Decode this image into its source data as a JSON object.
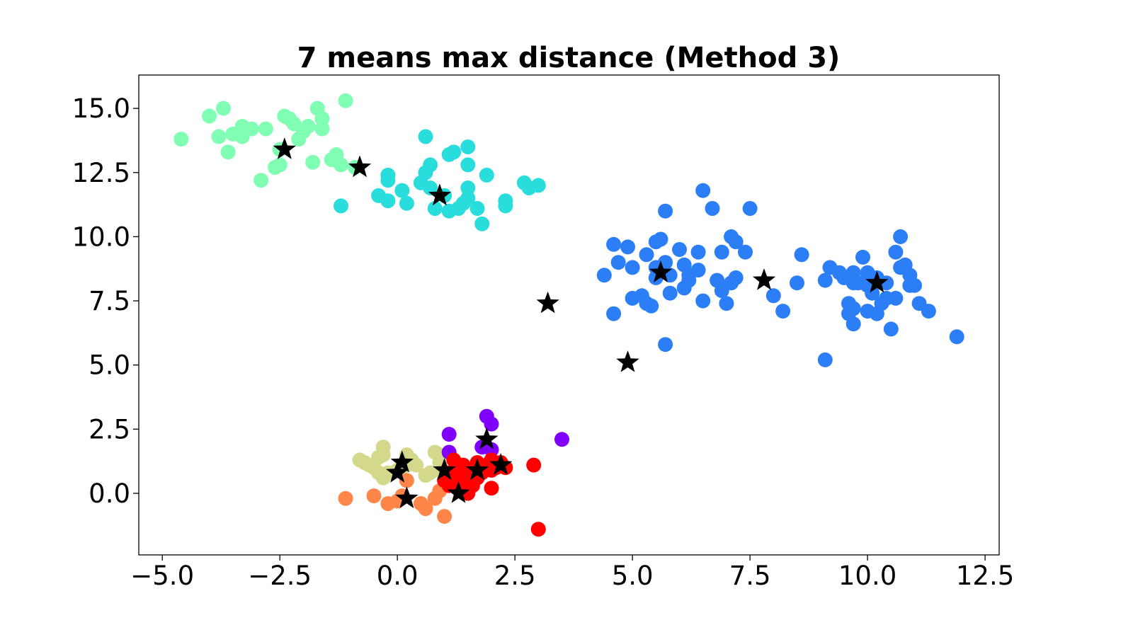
{
  "chart_data": {
    "type": "scatter",
    "title": "7 means max distance (Method 3)",
    "xlabel": "",
    "ylabel": "",
    "xlim": [
      -5.5,
      12.8
    ],
    "ylim": [
      -2.4,
      16.3
    ],
    "grid": false,
    "legend": "none",
    "xticks": [
      -5.0,
      -2.5,
      0.0,
      2.5,
      5.0,
      7.5,
      10.0,
      12.5
    ],
    "xtick_labels": [
      "−5.0",
      "−2.5",
      "0.0",
      "2.5",
      "5.0",
      "7.5",
      "10.0",
      "12.5"
    ],
    "yticks": [
      0.0,
      2.5,
      5.0,
      7.5,
      10.0,
      12.5,
      15.0
    ],
    "ytick_labels": [
      "0.0",
      "2.5",
      "5.0",
      "7.5",
      "10.0",
      "12.5",
      "15.0"
    ],
    "series": [
      {
        "color": "#80ffb4",
        "points": [
          [
            -4.6,
            13.8
          ],
          [
            -4.0,
            14.7
          ],
          [
            -3.7,
            15.0
          ],
          [
            -3.8,
            13.9
          ],
          [
            -3.6,
            13.3
          ],
          [
            -3.5,
            14.0
          ],
          [
            -3.3,
            14.3
          ],
          [
            -3.3,
            13.9
          ],
          [
            -3.1,
            14.2
          ],
          [
            -2.8,
            14.2
          ],
          [
            -2.9,
            12.2
          ],
          [
            -2.6,
            12.7
          ],
          [
            -2.5,
            13.4
          ],
          [
            -2.5,
            12.8
          ],
          [
            -2.4,
            14.7
          ],
          [
            -2.3,
            14.6
          ],
          [
            -2.2,
            14.4
          ],
          [
            -2.1,
            13.8
          ],
          [
            -2.0,
            14.1
          ],
          [
            -1.9,
            14.3
          ],
          [
            -1.8,
            12.9
          ],
          [
            -1.7,
            15.0
          ],
          [
            -1.6,
            14.6
          ],
          [
            -1.6,
            14.2
          ],
          [
            -1.4,
            13.0
          ],
          [
            -1.3,
            13.2
          ],
          [
            -1.2,
            12.8
          ],
          [
            -1.1,
            15.3
          ],
          [
            -0.9,
            12.7
          ]
        ]
      },
      {
        "color": "#2adddd",
        "points": [
          [
            -1.2,
            11.2
          ],
          [
            -0.4,
            11.6
          ],
          [
            -0.2,
            12.2
          ],
          [
            -0.2,
            11.4
          ],
          [
            -0.2,
            12.4
          ],
          [
            0.1,
            11.8
          ],
          [
            0.2,
            11.3
          ],
          [
            0.5,
            12.1
          ],
          [
            0.6,
            12.5
          ],
          [
            0.6,
            13.9
          ],
          [
            0.7,
            12.8
          ],
          [
            0.7,
            11.9
          ],
          [
            0.8,
            11.1
          ],
          [
            1.0,
            11.6
          ],
          [
            1.1,
            11.0
          ],
          [
            1.1,
            13.2
          ],
          [
            1.2,
            13.3
          ],
          [
            1.3,
            11.1
          ],
          [
            1.4,
            11.3
          ],
          [
            1.5,
            11.5
          ],
          [
            1.5,
            11.9
          ],
          [
            1.5,
            12.8
          ],
          [
            1.5,
            13.5
          ],
          [
            1.7,
            11.1
          ],
          [
            1.8,
            10.5
          ],
          [
            1.9,
            12.4
          ],
          [
            2.3,
            11.2
          ],
          [
            2.3,
            11.4
          ],
          [
            2.7,
            12.1
          ],
          [
            2.8,
            11.9
          ],
          [
            3.0,
            12.0
          ]
        ]
      },
      {
        "color": "#2c7ef7",
        "points": [
          [
            4.4,
            8.5
          ],
          [
            4.6,
            9.7
          ],
          [
            4.6,
            7.0
          ],
          [
            4.7,
            9.0
          ],
          [
            4.9,
            9.6
          ],
          [
            5.0,
            7.6
          ],
          [
            5.0,
            8.8
          ],
          [
            5.2,
            7.7
          ],
          [
            5.3,
            9.3
          ],
          [
            5.3,
            7.4
          ],
          [
            5.4,
            7.3
          ],
          [
            5.5,
            9.8
          ],
          [
            5.5,
            8.4
          ],
          [
            5.5,
            8.8
          ],
          [
            5.6,
            9.9
          ],
          [
            5.7,
            11.0
          ],
          [
            5.7,
            9.0
          ],
          [
            5.7,
            5.8
          ],
          [
            5.8,
            8.5
          ],
          [
            5.8,
            7.8
          ],
          [
            6.0,
            9.5
          ],
          [
            6.1,
            8.0
          ],
          [
            6.1,
            8.9
          ],
          [
            6.2,
            8.5
          ],
          [
            6.2,
            8.3
          ],
          [
            6.4,
            9.4
          ],
          [
            6.4,
            8.7
          ],
          [
            6.5,
            11.8
          ],
          [
            6.5,
            7.5
          ],
          [
            6.7,
            11.1
          ],
          [
            6.8,
            8.3
          ],
          [
            6.9,
            9.4
          ],
          [
            6.9,
            7.9
          ],
          [
            7.0,
            7.4
          ],
          [
            7.1,
            8.2
          ],
          [
            7.1,
            10.0
          ],
          [
            7.2,
            9.8
          ],
          [
            7.2,
            8.4
          ],
          [
            7.4,
            9.4
          ],
          [
            7.5,
            11.1
          ],
          [
            8.0,
            7.7
          ],
          [
            8.2,
            7.1
          ],
          [
            8.5,
            8.2
          ],
          [
            8.6,
            9.3
          ],
          [
            9.1,
            5.2
          ],
          [
            9.1,
            8.3
          ],
          [
            9.2,
            8.8
          ],
          [
            9.4,
            8.6
          ],
          [
            9.5,
            8.4
          ],
          [
            9.6,
            7.0
          ],
          [
            9.6,
            7.4
          ],
          [
            9.7,
            8.2
          ],
          [
            9.7,
            8.6
          ],
          [
            9.7,
            7.2
          ],
          [
            9.7,
            6.6
          ],
          [
            9.8,
            8.2
          ],
          [
            9.9,
            9.2
          ],
          [
            10.0,
            8.1
          ],
          [
            10.0,
            7.1
          ],
          [
            10.0,
            8.6
          ],
          [
            10.1,
            7.8
          ],
          [
            10.2,
            8.4
          ],
          [
            10.2,
            7.0
          ],
          [
            10.3,
            7.4
          ],
          [
            10.4,
            7.6
          ],
          [
            10.4,
            8.2
          ],
          [
            10.5,
            6.4
          ],
          [
            10.6,
            9.4
          ],
          [
            10.6,
            7.6
          ],
          [
            10.7,
            8.8
          ],
          [
            10.7,
            10.0
          ],
          [
            10.8,
            8.9
          ],
          [
            10.9,
            8.5
          ],
          [
            10.9,
            8.1
          ],
          [
            11.0,
            8.1
          ],
          [
            11.1,
            7.4
          ],
          [
            11.3,
            7.1
          ],
          [
            11.9,
            6.1
          ]
        ]
      },
      {
        "color": "#d4d88a",
        "points": [
          [
            -0.8,
            1.3
          ],
          [
            -0.7,
            1.2
          ],
          [
            -0.6,
            1.1
          ],
          [
            -0.5,
            1.0
          ],
          [
            -0.4,
            0.8
          ],
          [
            -0.4,
            1.4
          ],
          [
            -0.3,
            1.8
          ],
          [
            -0.3,
            1.5
          ],
          [
            -0.3,
            0.6
          ],
          [
            -0.2,
            0.8
          ],
          [
            0.0,
            0.9
          ],
          [
            0.1,
            1.0
          ],
          [
            0.2,
            1.5
          ],
          [
            0.2,
            1.1
          ],
          [
            0.3,
            1.3
          ],
          [
            0.4,
            1.1
          ],
          [
            0.6,
            0.7
          ],
          [
            0.7,
            0.8
          ],
          [
            0.8,
            1.6
          ],
          [
            0.9,
            1.2
          ],
          [
            0.9,
            0.9
          ],
          [
            0.9,
            1.5
          ]
        ]
      },
      {
        "color": "#ff8548",
        "points": [
          [
            -1.1,
            -0.2
          ],
          [
            -0.5,
            -0.1
          ],
          [
            -0.2,
            -0.4
          ],
          [
            0.0,
            -0.3
          ],
          [
            0.1,
            -0.1
          ],
          [
            0.2,
            0.5
          ],
          [
            0.5,
            -0.4
          ],
          [
            0.6,
            -0.6
          ],
          [
            0.8,
            -0.2
          ],
          [
            0.9,
            0.1
          ],
          [
            1.0,
            -0.9
          ]
        ]
      },
      {
        "color": "#8000ff",
        "points": [
          [
            1.1,
            2.3
          ],
          [
            1.1,
            1.6
          ],
          [
            1.8,
            1.8
          ],
          [
            1.9,
            3.0
          ],
          [
            2.0,
            2.7
          ],
          [
            2.0,
            1.7
          ],
          [
            3.5,
            2.1
          ]
        ]
      },
      {
        "color": "#ff0000",
        "points": [
          [
            1.0,
            0.5
          ],
          [
            1.1,
            0.8
          ],
          [
            1.1,
            0.3
          ],
          [
            1.2,
            1.3
          ],
          [
            1.2,
            0.6
          ],
          [
            1.3,
            0.9
          ],
          [
            1.3,
            0.4
          ],
          [
            1.3,
            0.2
          ],
          [
            1.4,
            0.7
          ],
          [
            1.4,
            1.1
          ],
          [
            1.5,
            0.5
          ],
          [
            1.5,
            0.0
          ],
          [
            1.6,
            0.9
          ],
          [
            1.6,
            0.3
          ],
          [
            1.7,
            1.2
          ],
          [
            1.7,
            0.6
          ],
          [
            1.8,
            0.8
          ],
          [
            1.9,
            1.1
          ],
          [
            2.0,
            1.3
          ],
          [
            2.0,
            0.9
          ],
          [
            2.0,
            0.2
          ],
          [
            2.1,
            1.0
          ],
          [
            2.2,
            1.2
          ],
          [
            2.3,
            1.0
          ],
          [
            2.9,
            1.1
          ],
          [
            3.0,
            -1.4
          ]
        ]
      }
    ],
    "centroids": {
      "color": "#000000",
      "marker": "star",
      "points": [
        [
          -2.4,
          13.4
        ],
        [
          -0.8,
          12.7
        ],
        [
          0.9,
          11.6
        ],
        [
          3.2,
          7.4
        ],
        [
          4.9,
          5.1
        ],
        [
          5.6,
          8.6
        ],
        [
          7.8,
          8.3
        ],
        [
          10.2,
          8.2
        ],
        [
          1.9,
          2.1
        ],
        [
          0.1,
          1.2
        ],
        [
          0.0,
          0.8
        ],
        [
          1.0,
          0.9
        ],
        [
          1.7,
          0.9
        ],
        [
          2.2,
          1.1
        ],
        [
          0.2,
          -0.2
        ],
        [
          1.3,
          0.0
        ]
      ]
    }
  }
}
